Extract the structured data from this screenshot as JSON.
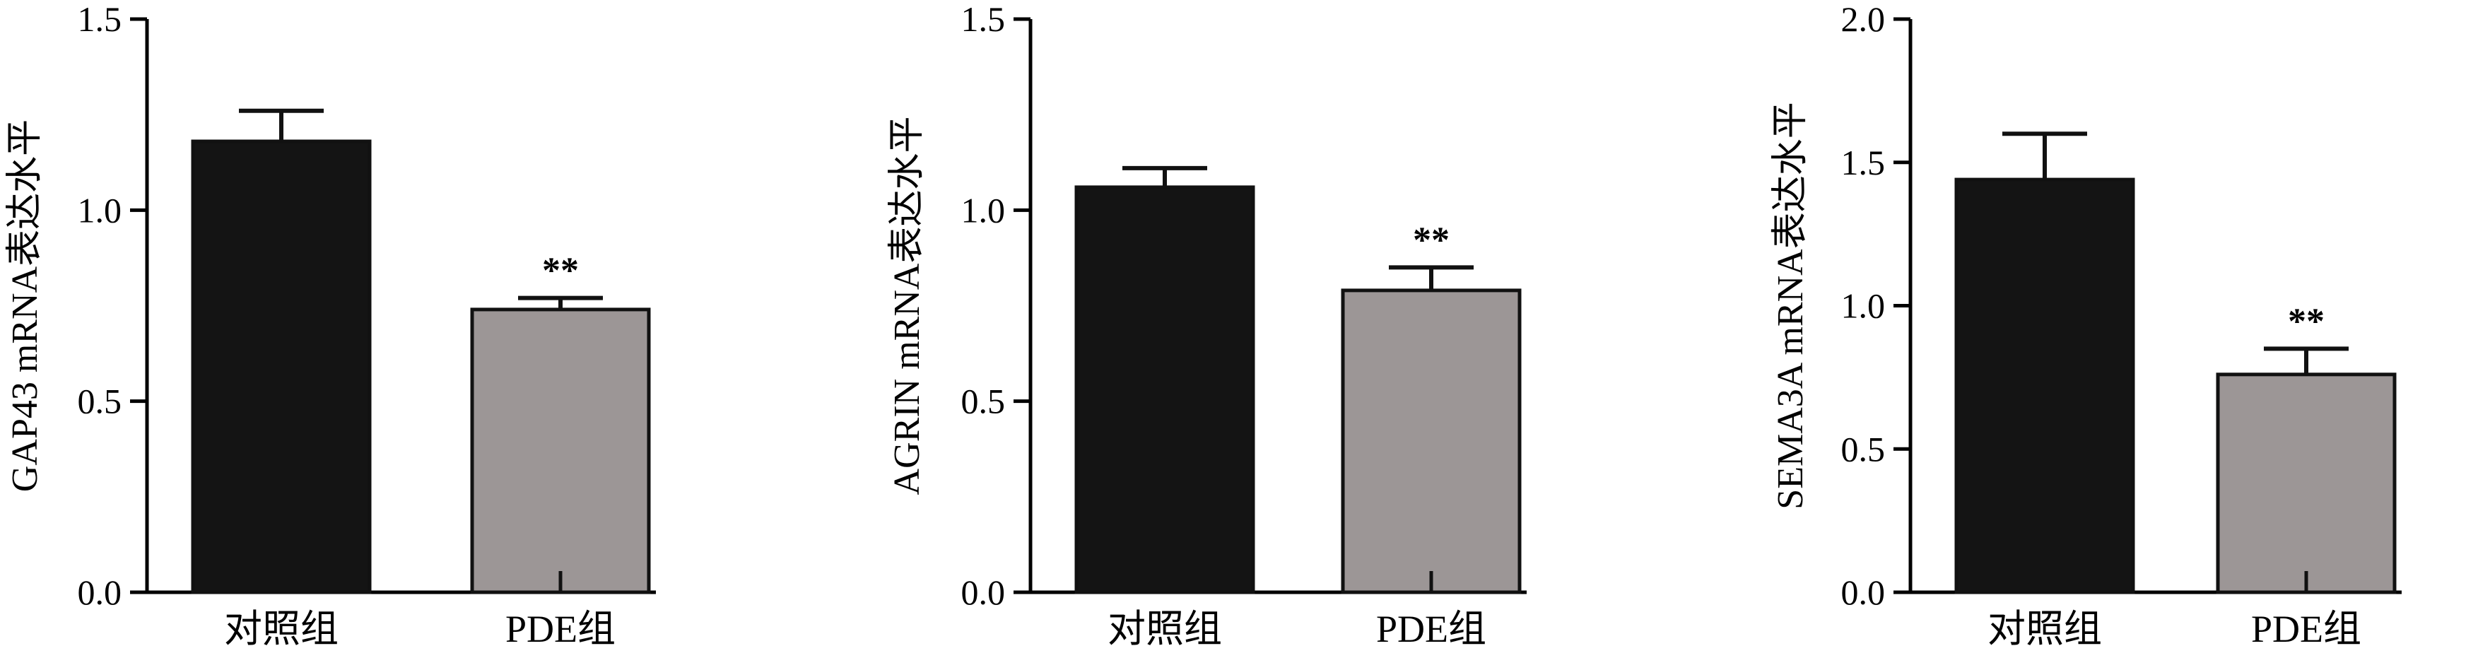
{
  "colors": {
    "control_bar": "#141414",
    "pde_bar": "#9c9696",
    "axis": "#000000"
  },
  "chart_data": [
    {
      "type": "bar",
      "categories": [
        "对照组",
        "PDE组"
      ],
      "values": [
        1.18,
        0.74
      ],
      "errors": [
        0.08,
        0.03
      ],
      "significance": [
        "",
        "**"
      ],
      "title": "",
      "xlabel": "",
      "ylabel": "GAP43 mRNA表达水平",
      "ylim": [
        0,
        1.5
      ],
      "yticks": [
        "0.0",
        "0.5",
        "1.0",
        "1.5"
      ],
      "ytick_values": [
        0,
        0.5,
        1.0,
        1.5
      ]
    },
    {
      "type": "bar",
      "categories": [
        "对照组",
        "PDE组"
      ],
      "values": [
        1.06,
        0.79
      ],
      "errors": [
        0.05,
        0.06
      ],
      "significance": [
        "",
        "**"
      ],
      "title": "",
      "xlabel": "",
      "ylabel": "AGRIN mRNA表达水平",
      "ylim": [
        0,
        1.5
      ],
      "yticks": [
        "0.0",
        "0.5",
        "1.0",
        "1.5"
      ],
      "ytick_values": [
        0,
        0.5,
        1.0,
        1.5
      ]
    },
    {
      "type": "bar",
      "categories": [
        "对照组",
        "PDE组"
      ],
      "values": [
        1.44,
        0.76
      ],
      "errors": [
        0.16,
        0.09
      ],
      "significance": [
        "",
        "**"
      ],
      "title": "",
      "xlabel": "",
      "ylabel": "SEMA3A mRNA表达水平",
      "ylim": [
        0,
        2.0
      ],
      "yticks": [
        "0.0",
        "0.5",
        "1.0",
        "1.5",
        "2.0"
      ],
      "ytick_values": [
        0,
        0.5,
        1.0,
        1.5,
        2.0
      ]
    }
  ]
}
